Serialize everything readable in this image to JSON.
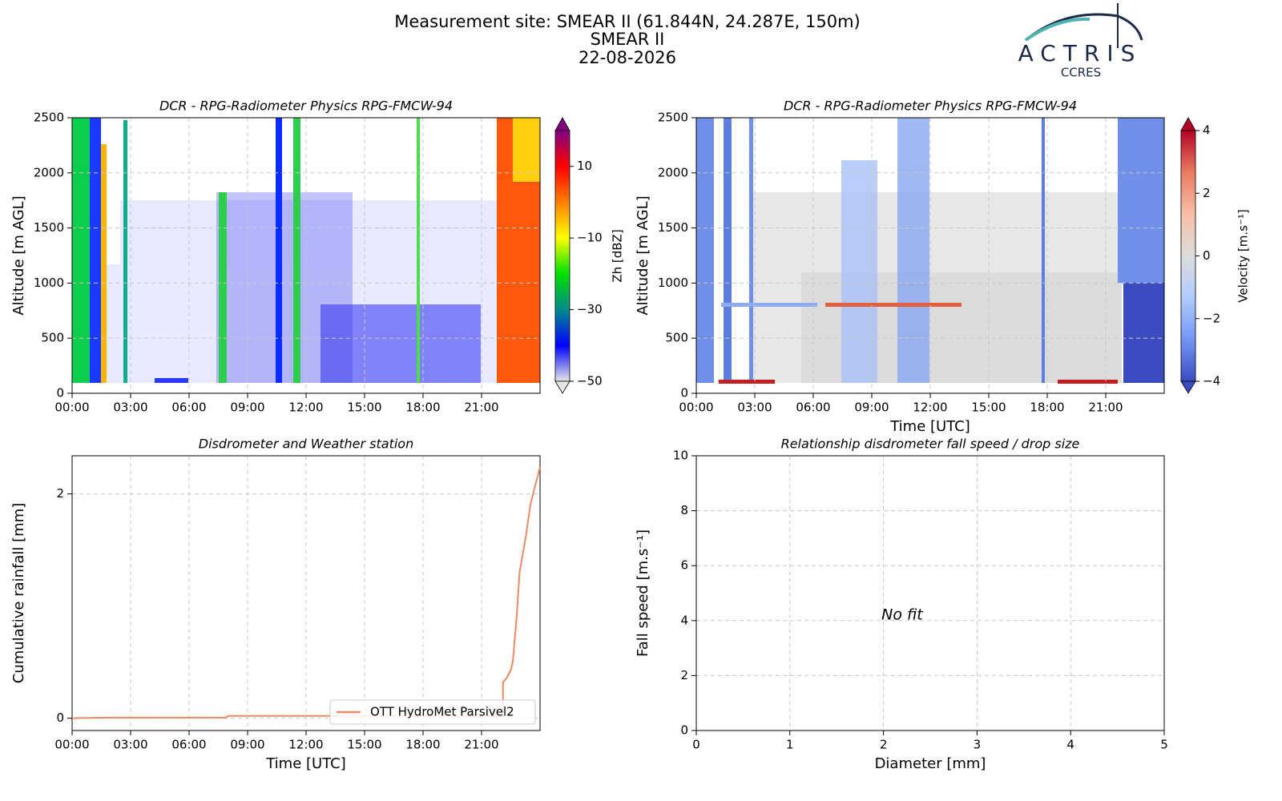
{
  "header": {
    "title": [
      "Measurement site: SMEAR II (61.844N, 24.287E, 150m)",
      "SMEAR II",
      "22-08-2026"
    ]
  },
  "logo": {
    "name": "ACTRIS",
    "subname": "CCRES"
  },
  "chart_data": [
    {
      "type": "heatmap",
      "title": "DCR - RPG-Radiometer Physics RPG-FMCW-94",
      "ylabel": "Altitude [m AGL]",
      "xlim": [
        0,
        24
      ],
      "xticks": [
        {
          "value": 0,
          "label": "00:00"
        },
        {
          "value": 3,
          "label": "03:00"
        },
        {
          "value": 6,
          "label": "06:00"
        },
        {
          "value": 9,
          "label": "09:00"
        },
        {
          "value": 12,
          "label": "12:00"
        },
        {
          "value": 15,
          "label": "15:00"
        },
        {
          "value": 18,
          "label": "18:00"
        },
        {
          "value": 21,
          "label": "21:00"
        }
      ],
      "ylim": [
        0,
        2500
      ],
      "yticks": [
        0,
        500,
        1000,
        1500,
        2000,
        2500
      ],
      "grid": true,
      "colorbar": {
        "label": "Zh [dBZ]",
        "clim": [
          -50,
          20
        ],
        "ticks": [
          {
            "value": -50,
            "label": "−50"
          },
          {
            "value": -30,
            "label": "−30"
          },
          {
            "value": -10,
            "label": "−10"
          },
          10
        ],
        "extend": "both",
        "colormap": [
          "#e6e6e6",
          "#0000ff",
          "#008b8b",
          "#00e000",
          "#ffff00",
          "#ff8000",
          "#ff0000",
          "#800080"
        ]
      }
    },
    {
      "type": "heatmap",
      "title": "DCR - RPG-Radiometer Physics RPG-FMCW-94",
      "ylabel": "Altitude [m AGL]",
      "xlabel": "Time [UTC]",
      "xlim": [
        0,
        24
      ],
      "xticks": [
        {
          "value": 0,
          "label": "00:00"
        },
        {
          "value": 3,
          "label": "03:00"
        },
        {
          "value": 6,
          "label": "06:00"
        },
        {
          "value": 9,
          "label": "09:00"
        },
        {
          "value": 12,
          "label": "12:00"
        },
        {
          "value": 15,
          "label": "15:00"
        },
        {
          "value": 18,
          "label": "18:00"
        },
        {
          "value": 21,
          "label": "21:00"
        }
      ],
      "ylim": [
        0,
        2500
      ],
      "yticks": [
        0,
        500,
        1000,
        1500,
        2000,
        2500
      ],
      "grid": true,
      "colorbar": {
        "label": "Velocity [m.s⁻¹]",
        "clim": [
          -4,
          4
        ],
        "ticks": [
          {
            "value": -4,
            "label": "−4"
          },
          {
            "value": -2,
            "label": "−2"
          },
          0,
          2,
          4
        ],
        "extend": "both",
        "colormap": [
          "#3b4cc0",
          "#7396f5",
          "#b0cbfc",
          "#dddddd",
          "#f6bfa6",
          "#ea7b60",
          "#b40426"
        ]
      }
    },
    {
      "type": "line",
      "title": "Disdrometer and Weather station",
      "ylabel": "Cumulative rainfall [mm]",
      "xlabel": "Time [UTC]",
      "xlim": [
        0,
        24
      ],
      "xticks": [
        {
          "value": 0,
          "label": "00:00"
        },
        {
          "value": 3,
          "label": "03:00"
        },
        {
          "value": 6,
          "label": "06:00"
        },
        {
          "value": 9,
          "label": "09:00"
        },
        {
          "value": 12,
          "label": "12:00"
        },
        {
          "value": 15,
          "label": "15:00"
        },
        {
          "value": 18,
          "label": "18:00"
        },
        {
          "value": 21,
          "label": "21:00"
        }
      ],
      "ylim": [
        -0.11,
        2.34
      ],
      "yticks": [
        0,
        2
      ],
      "grid": true,
      "legend": "lower right",
      "x": [
        0,
        1.8,
        7.9,
        8.0,
        22.1,
        22.1,
        22.3,
        22.5,
        22.6,
        22.8,
        22.95,
        23.1,
        23.3,
        23.5,
        23.7,
        24
      ],
      "series": [
        {
          "name": "OTT HydroMet Parsivel2",
          "color": "#ec8a64",
          "values": [
            0,
            0.005,
            0.005,
            0.02,
            0.02,
            0.32,
            0.36,
            0.43,
            0.5,
            0.9,
            1.3,
            1.45,
            1.65,
            1.9,
            2.04,
            2.24
          ]
        }
      ]
    },
    {
      "type": "scatter",
      "title": "Relationship disdrometer fall speed / drop size",
      "ylabel": "Fall speed [m.s⁻¹]",
      "xlabel": "Diameter [mm]",
      "xlim": [
        0,
        5
      ],
      "xticks": [
        0,
        1,
        2,
        3,
        4,
        5
      ],
      "ylim": [
        0,
        10
      ],
      "yticks": [
        0,
        2,
        4,
        6,
        8,
        10
      ],
      "grid": true,
      "annotation": "No fit"
    }
  ]
}
